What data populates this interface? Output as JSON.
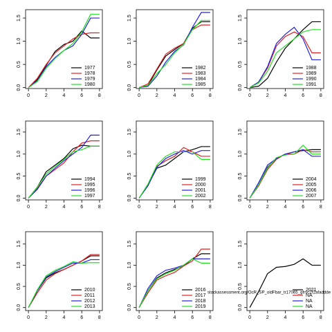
{
  "chart_data": [
    {
      "type": "line",
      "x": [
        0,
        1,
        2,
        3,
        4,
        5,
        6,
        7,
        8
      ],
      "xlim": [
        -0.32,
        8.32
      ],
      "xticks": [
        0,
        2,
        4,
        6,
        8
      ],
      "ylim": [
        -0.02,
        1.68
      ],
      "yticks": [
        {
          "value": 0,
          "label": "0.0"
        },
        0.5,
        {
          "value": 1,
          "label": "1.0"
        },
        1.5
      ],
      "legend": "lower right",
      "series": [
        {
          "name": "1977",
          "color": "#000000",
          "values": [
            0,
            0.18,
            0.48,
            0.78,
            0.93,
            1.0,
            1.22,
            1.07,
            1.07
          ]
        },
        {
          "name": "1978",
          "color": "#df2020",
          "values": [
            0,
            0.2,
            0.5,
            0.75,
            0.9,
            1.05,
            1.15,
            1.18,
            1.18
          ]
        },
        {
          "name": "1979",
          "color": "#2020e0",
          "values": [
            0,
            0.15,
            0.45,
            0.65,
            0.8,
            0.9,
            1.15,
            1.5,
            1.5
          ]
        },
        {
          "name": "1980",
          "color": "#20e020",
          "values": [
            0,
            0.13,
            0.42,
            0.63,
            0.8,
            0.95,
            1.2,
            1.58,
            1.58
          ]
        }
      ]
    },
    {
      "type": "line",
      "x": [
        0,
        1,
        2,
        3,
        4,
        5,
        6,
        7,
        8
      ],
      "xlim": [
        -0.32,
        8.32
      ],
      "xticks": [
        0,
        2,
        4,
        6,
        8
      ],
      "ylim": [
        -0.02,
        1.68
      ],
      "yticks": [
        {
          "value": 0,
          "label": "0.0"
        },
        0.5,
        {
          "value": 1,
          "label": "1.0"
        },
        1.5
      ],
      "legend": "lower right",
      "series": [
        {
          "name": "1982",
          "color": "#000000",
          "values": [
            0,
            0.05,
            0.38,
            0.68,
            0.82,
            0.95,
            1.28,
            1.42,
            1.42
          ]
        },
        {
          "name": "1983",
          "color": "#df2020",
          "values": [
            0,
            0.08,
            0.4,
            0.72,
            0.85,
            0.95,
            1.25,
            1.35,
            1.35
          ]
        },
        {
          "name": "1984",
          "color": "#2020e0",
          "values": [
            0,
            0.03,
            0.25,
            0.55,
            0.78,
            0.92,
            1.3,
            1.62,
            1.62
          ]
        },
        {
          "name": "1985",
          "color": "#20e020",
          "values": [
            0,
            0.05,
            0.3,
            0.5,
            0.75,
            0.93,
            1.25,
            1.45,
            1.45
          ]
        }
      ]
    },
    {
      "type": "line",
      "x": [
        0,
        1,
        2,
        3,
        4,
        5,
        6,
        7,
        8
      ],
      "xlim": [
        -0.32,
        8.32
      ],
      "xticks": [
        0,
        2,
        4,
        6,
        8
      ],
      "ylim": [
        -0.02,
        1.68
      ],
      "yticks": [
        {
          "value": 0,
          "label": "0.0"
        },
        0.5,
        {
          "value": 1,
          "label": "1.0"
        },
        1.5
      ],
      "legend": "lower right",
      "series": [
        {
          "name": "1988",
          "color": "#000000",
          "values": [
            0,
            0.03,
            0.2,
            0.55,
            0.85,
            1.05,
            1.25,
            1.42,
            1.42
          ]
        },
        {
          "name": "1989",
          "color": "#df2020",
          "values": [
            0,
            0.12,
            0.42,
            0.9,
            1.1,
            1.2,
            1.1,
            0.75,
            0.75
          ]
        },
        {
          "name": "1990",
          "color": "#2020e0",
          "values": [
            0,
            0.12,
            0.45,
            0.95,
            1.15,
            1.3,
            1.05,
            0.6,
            0.6
          ]
        },
        {
          "name": "1991",
          "color": "#20e020",
          "values": [
            0,
            0.1,
            0.35,
            0.75,
            0.9,
            1.05,
            1.2,
            1.25,
            1.25
          ]
        }
      ]
    },
    {
      "type": "line",
      "x": [
        0,
        1,
        2,
        3,
        4,
        5,
        6,
        7,
        8
      ],
      "xlim": [
        -0.32,
        8.32
      ],
      "xticks": [
        0,
        2,
        4,
        6,
        8
      ],
      "ylim": [
        -0.04,
        1.75
      ],
      "yticks": [
        {
          "value": 0,
          "label": "0.0"
        },
        0.5,
        {
          "value": 1,
          "label": "1.0"
        },
        1.5
      ],
      "legend": "lower right",
      "series": [
        {
          "name": "1994",
          "color": "#000000",
          "values": [
            0,
            0.25,
            0.6,
            0.75,
            0.9,
            1.12,
            1.2,
            1.18,
            1.18
          ]
        },
        {
          "name": "1995",
          "color": "#df2020",
          "values": [
            0,
            0.22,
            0.5,
            0.65,
            0.8,
            1.05,
            1.25,
            1.3,
            1.3
          ]
        },
        {
          "name": "1996",
          "color": "#2020e0",
          "values": [
            0,
            0.2,
            0.5,
            0.68,
            0.85,
            1.0,
            1.15,
            1.43,
            1.43
          ]
        },
        {
          "name": "1997",
          "color": "#20e020",
          "values": [
            0,
            0.25,
            0.55,
            0.72,
            0.88,
            1.05,
            1.1,
            1.18,
            1.18
          ]
        }
      ]
    },
    {
      "type": "line",
      "x": [
        0,
        1,
        2,
        3,
        4,
        5,
        6,
        7,
        8
      ],
      "xlim": [
        -0.32,
        8.32
      ],
      "xticks": [
        0,
        2,
        4,
        6,
        8
      ],
      "ylim": [
        -0.04,
        1.75
      ],
      "yticks": [
        {
          "value": 0,
          "label": "0.0"
        },
        0.5,
        {
          "value": 1,
          "label": "1.0"
        },
        1.5
      ],
      "legend": "lower right",
      "series": [
        {
          "name": "1999",
          "color": "#000000",
          "values": [
            0,
            0.3,
            0.68,
            0.75,
            0.9,
            1.05,
            1.1,
            1.17,
            1.17
          ]
        },
        {
          "name": "2000",
          "color": "#df2020",
          "values": [
            0,
            0.3,
            0.72,
            0.85,
            0.95,
            1.15,
            1.05,
            0.95,
            0.95
          ]
        },
        {
          "name": "2001",
          "color": "#2020e0",
          "values": [
            0,
            0.28,
            0.7,
            0.9,
            1.0,
            1.08,
            1.0,
            1.08,
            1.08
          ]
        },
        {
          "name": "2002",
          "color": "#20e020",
          "values": [
            0,
            0.32,
            0.75,
            0.95,
            1.05,
            1.05,
            1.05,
            0.88,
            0.88
          ]
        }
      ]
    },
    {
      "type": "line",
      "x": [
        0,
        1,
        2,
        3,
        4,
        5,
        6,
        7,
        8
      ],
      "xlim": [
        -0.32,
        8.32
      ],
      "xticks": [
        0,
        2,
        4,
        6,
        8
      ],
      "ylim": [
        -0.04,
        1.75
      ],
      "yticks": [
        {
          "value": 0,
          "label": "0.0"
        },
        0.5,
        {
          "value": 1,
          "label": "1.0"
        },
        1.5
      ],
      "legend": "lower right",
      "series": [
        {
          "name": "2004",
          "color": "#000000",
          "values": [
            0,
            0.3,
            0.7,
            0.9,
            1.0,
            1.05,
            1.08,
            1.1,
            1.1
          ]
        },
        {
          "name": "2005",
          "color": "#df2020",
          "values": [
            0,
            0.28,
            0.65,
            0.88,
            1.0,
            1.0,
            1.1,
            1.05,
            1.05
          ]
        },
        {
          "name": "2006",
          "color": "#2020e0",
          "values": [
            0,
            0.35,
            0.75,
            0.9,
            1.0,
            1.05,
            1.1,
            0.95,
            0.95
          ]
        },
        {
          "name": "2007",
          "color": "#20e020",
          "values": [
            0,
            0.3,
            0.68,
            0.92,
            0.98,
            1.0,
            1.2,
            1.0,
            1.0
          ]
        }
      ]
    },
    {
      "type": "line",
      "x": [
        0,
        1,
        2,
        3,
        4,
        5,
        6,
        7,
        8
      ],
      "xlim": [
        -0.32,
        8.32
      ],
      "xticks": [
        0,
        2,
        4,
        6,
        8
      ],
      "ylim": [
        -0.07,
        1.79
      ],
      "yticks": [
        {
          "value": 0,
          "label": "0.0"
        },
        0.5,
        {
          "value": 1,
          "label": "1.0"
        },
        1.5
      ],
      "legend": "lower right",
      "series": [
        {
          "name": "2010",
          "color": "#000000",
          "values": [
            0,
            0.4,
            0.7,
            0.82,
            0.9,
            1.0,
            1.1,
            1.22,
            1.22
          ]
        },
        {
          "name": "2011",
          "color": "#df2020",
          "values": [
            0,
            0.35,
            0.65,
            0.8,
            0.9,
            1.0,
            1.1,
            1.25,
            1.25
          ]
        },
        {
          "name": "2012",
          "color": "#2020e0",
          "values": [
            0,
            0.4,
            0.72,
            0.85,
            0.95,
            1.05,
            1.05,
            1.13,
            1.13
          ]
        },
        {
          "name": "2013",
          "color": "#20e020",
          "values": [
            0,
            0.42,
            0.75,
            0.88,
            0.97,
            1.08,
            1.05,
            1.06,
            1.06
          ]
        }
      ]
    },
    {
      "type": "line",
      "x": [
        0,
        1,
        2,
        3,
        4,
        5,
        6,
        7,
        8
      ],
      "xlim": [
        -0.32,
        8.32
      ],
      "xticks": [
        0,
        2,
        4,
        6,
        8
      ],
      "ylim": [
        -0.07,
        1.79
      ],
      "yticks": [
        {
          "value": 0,
          "label": "0.0"
        },
        0.5,
        {
          "value": 1,
          "label": "1.0"
        },
        1.5
      ],
      "legend": "lower right",
      "series": [
        {
          "name": "2016",
          "color": "#000000",
          "values": [
            0,
            0.4,
            0.7,
            0.82,
            0.9,
            0.98,
            1.15,
            1.27,
            1.27
          ]
        },
        {
          "name": "2017",
          "color": "#df2020",
          "values": [
            0,
            0.35,
            0.65,
            0.75,
            0.83,
            0.98,
            1.1,
            1.38,
            1.38
          ]
        },
        {
          "name": "2018",
          "color": "#2020e0",
          "values": [
            0,
            0.45,
            0.75,
            0.88,
            0.93,
            1.0,
            1.15,
            1.15,
            1.15
          ]
        },
        {
          "name": "2019",
          "color": "#20e020",
          "values": [
            0,
            0.4,
            0.68,
            0.8,
            0.88,
            1.0,
            1.15,
            1.05,
            1.05
          ]
        }
      ]
    },
    {
      "type": "line",
      "x": [
        0,
        1,
        2,
        3,
        4,
        5,
        6,
        7,
        8
      ],
      "xlim": [
        -0.32,
        8.32
      ],
      "xticks": [
        0,
        2,
        4,
        6,
        8
      ],
      "ylim": [
        -0.07,
        1.79
      ],
      "yticks": [
        {
          "value": 0,
          "label": "0.0"
        },
        0.5,
        {
          "value": 1,
          "label": "1.0"
        },
        1.5
      ],
      "legend": "lower right",
      "annotation": "stockassessment.org/OcR_SP_oldFbar_tr17065_gfrsc2r2afaddde",
      "series": [
        {
          "name": "2021",
          "color": "#000000",
          "values": [
            0,
            0.38,
            0.8,
            0.95,
            0.97,
            1.02,
            1.15,
            1.0,
            1.0
          ]
        },
        {
          "name": "NA",
          "color": "#df2020",
          "values": [
            null,
            null,
            null,
            null,
            null,
            null,
            null,
            null,
            null
          ]
        },
        {
          "name": "NA",
          "color": "#2020e0",
          "values": [
            null,
            null,
            null,
            null,
            null,
            null,
            null,
            null,
            null
          ]
        },
        {
          "name": "NA",
          "color": "#20e020",
          "values": [
            null,
            null,
            null,
            null,
            null,
            null,
            null,
            null,
            null
          ]
        }
      ]
    }
  ]
}
